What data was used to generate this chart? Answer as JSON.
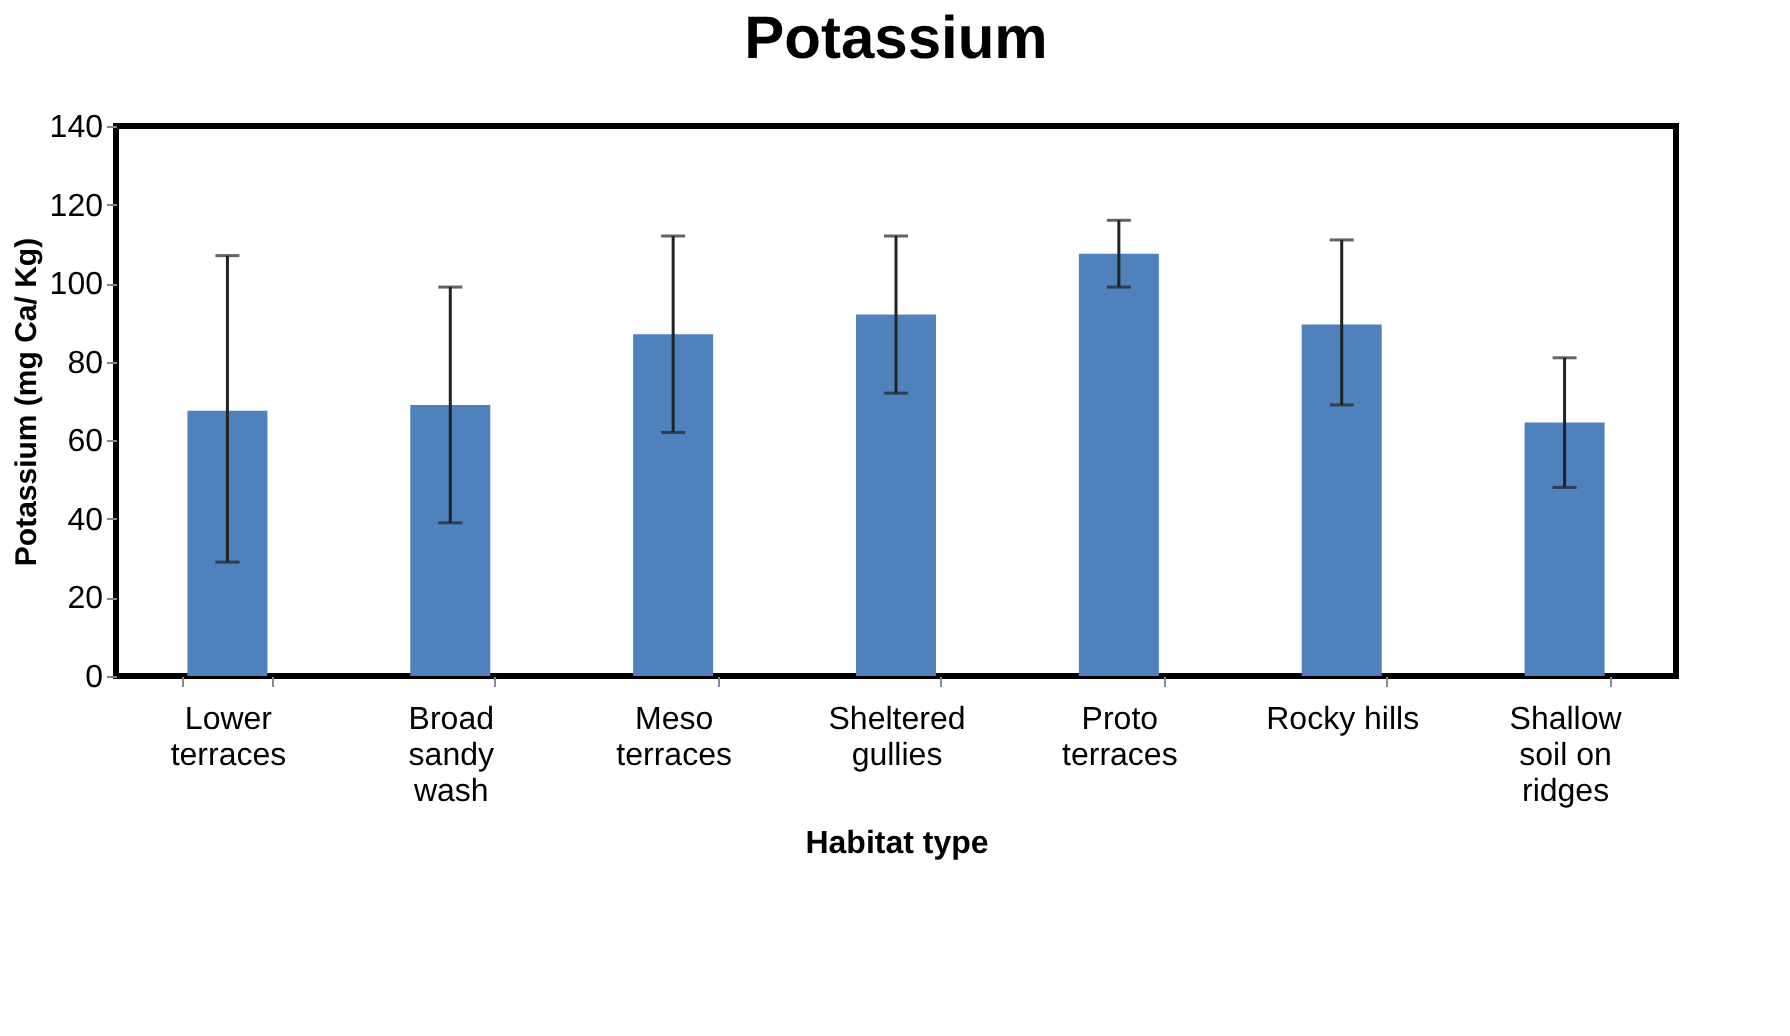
{
  "chart_data": {
    "type": "bar",
    "title": "Potassium",
    "xlabel": "Habitat type",
    "ylabel": "Potassium (mg Ca/ Kg)",
    "categories": [
      "Lower\nterraces",
      "Broad\nsandy\nwash",
      "Meso\nterraces",
      "Sheltered\ngullies",
      "Proto\nterraces",
      "Rocky hills",
      "Shallow\nsoil on\nridges"
    ],
    "values": [
      67.5,
      69,
      87,
      92,
      107.5,
      89.5,
      64.5
    ],
    "errors": [
      [
        29,
        107
      ],
      [
        39,
        99
      ],
      [
        62,
        112
      ],
      [
        72,
        112
      ],
      [
        99,
        116
      ],
      [
        69,
        111
      ],
      [
        48,
        81
      ]
    ],
    "color": "#4f81bd",
    "ylim": [
      0,
      140
    ],
    "yticks": [
      0,
      20,
      40,
      60,
      80,
      100,
      120,
      140
    ],
    "grid": false
  }
}
